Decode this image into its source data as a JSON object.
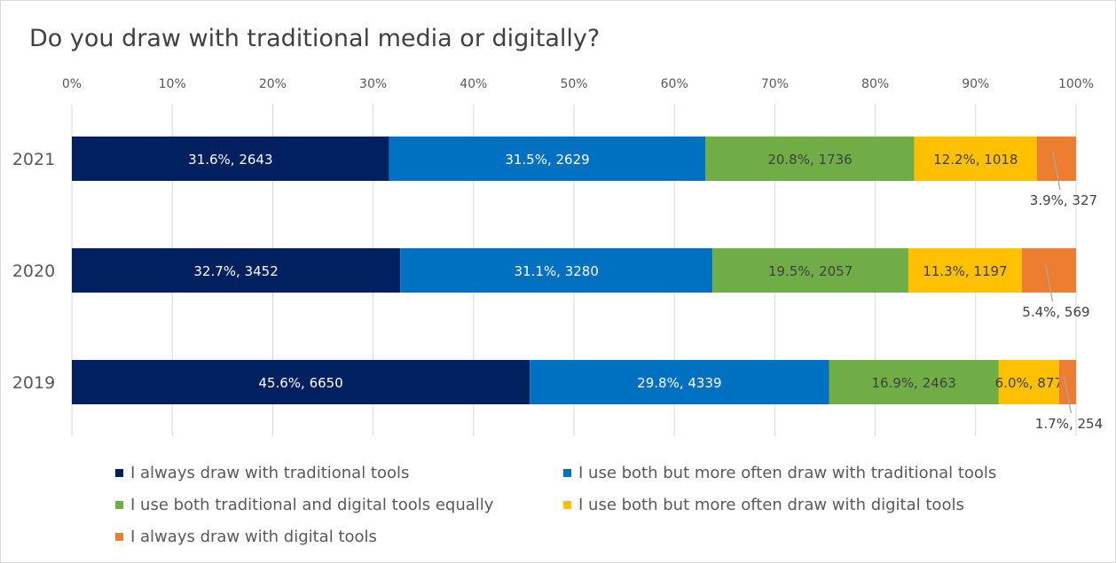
{
  "chart_data": {
    "type": "bar",
    "orientation": "horizontal",
    "stacked": "percent",
    "title": "Do you draw with traditional media or digitally?",
    "categories": [
      "2021",
      "2020",
      "2019"
    ],
    "x_ticks": [
      "0%",
      "10%",
      "20%",
      "30%",
      "40%",
      "50%",
      "60%",
      "70%",
      "80%",
      "90%",
      "100%"
    ],
    "xlim": [
      0,
      100
    ],
    "grid": "vertical",
    "legend_position": "bottom",
    "series": [
      {
        "name": "I always draw with traditional tools",
        "color": "#002060",
        "percent": [
          31.6,
          32.7,
          45.6
        ],
        "counts": [
          2643,
          3452,
          6650
        ],
        "labels": [
          "31.6%, 2643",
          "32.7%, 3452",
          "45.6%, 6650"
        ]
      },
      {
        "name": "I use both but more often draw with traditional tools",
        "color": "#0070c0",
        "percent": [
          31.5,
          31.1,
          29.8
        ],
        "counts": [
          2629,
          3280,
          4339
        ],
        "labels": [
          "31.5%, 2629",
          "31.1%, 3280",
          "29.8%, 4339"
        ]
      },
      {
        "name": "I use both traditional and digital tools equally",
        "color": "#70ad47",
        "percent": [
          20.8,
          19.5,
          16.9
        ],
        "counts": [
          1736,
          2057,
          2463
        ],
        "labels": [
          "20.8%, 1736",
          "19.5%, 2057",
          "16.9%, 2463"
        ]
      },
      {
        "name": "I use both but more often draw with digital tools",
        "color": "#ffc000",
        "percent": [
          12.2,
          11.3,
          6.0
        ],
        "counts": [
          1018,
          1197,
          877
        ],
        "labels": [
          "12.2%, 1018",
          "11.3%, 1197",
          "6.0%, 877"
        ]
      },
      {
        "name": "I always draw with digital tools",
        "color": "#ed7d31",
        "percent": [
          3.9,
          5.4,
          1.7
        ],
        "counts": [
          327,
          569,
          254
        ],
        "labels": [
          "3.9%, 327",
          "5.4%, 569",
          "1.7%, 254"
        ]
      }
    ]
  }
}
